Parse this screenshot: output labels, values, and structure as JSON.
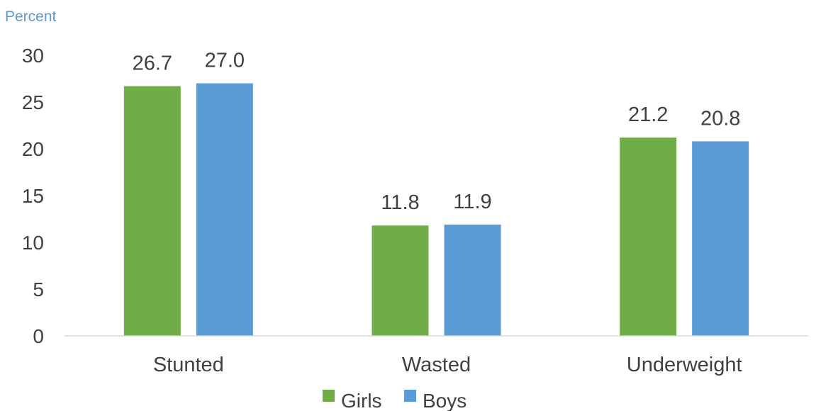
{
  "chart_data": {
    "type": "bar",
    "ylabel": "Percent",
    "categories": [
      "Stunted",
      "Wasted",
      "Underweight"
    ],
    "series": [
      {
        "name": "Girls",
        "color": "#70ad47",
        "values": [
          26.7,
          11.8,
          21.2
        ]
      },
      {
        "name": "Boys",
        "color": "#5b9bd5",
        "values": [
          27.0,
          11.9,
          20.8
        ]
      }
    ],
    "data_labels": [
      [
        "26.7",
        "11.8",
        "21.2"
      ],
      [
        "27.0",
        "11.9",
        "20.8"
      ]
    ],
    "ylim": [
      0,
      30
    ],
    "yticks": [
      0,
      5,
      10,
      15,
      20,
      25,
      30
    ],
    "grid": false,
    "legend_position": "bottom",
    "colors": {
      "text": "#404040",
      "ylabel": "#5b9bd5",
      "axis": "#d9d9d9"
    }
  }
}
